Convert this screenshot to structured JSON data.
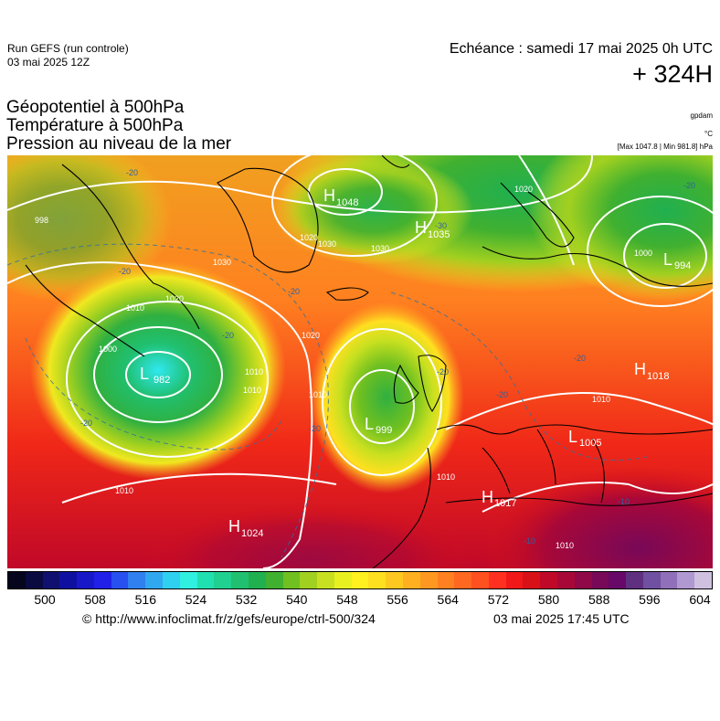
{
  "header": {
    "run_name": "Run GEFS (run controle)",
    "run_date": "03 mai 2025 12Z",
    "valid_time": "Echéance : samedi 17 mai 2025 0h UTC",
    "lead_time": "+ 324H"
  },
  "titles": {
    "line1": "Géopotentiel à 500hPa",
    "line2": "Température à 500hPa",
    "line3": "Pression au niveau de la mer"
  },
  "units": {
    "geopotential": "gpdam",
    "temperature": "°C",
    "pressure": "[Max 1047.8 | Min 981.8] hPa"
  },
  "centers": [
    {
      "kind": "H",
      "value": "1048"
    },
    {
      "kind": "H",
      "value": "1035"
    },
    {
      "kind": "L",
      "value": "994"
    },
    {
      "kind": "L",
      "value": "982"
    },
    {
      "kind": "L",
      "value": "999"
    },
    {
      "kind": "H",
      "value": "1018"
    },
    {
      "kind": "L",
      "value": "1005"
    },
    {
      "kind": "H",
      "value": "1017"
    },
    {
      "kind": "H",
      "value": "1024"
    }
  ],
  "isobar_labels": [
    "998",
    "1020",
    "1030",
    "1030",
    "1020",
    "1020",
    "1010",
    "1000",
    "1010",
    "1010",
    "1010",
    "1010",
    "1010",
    "1010",
    "1020",
    "1030",
    "1010",
    "1000"
  ],
  "isotherm_labels": [
    "-20",
    "-20",
    "-20",
    "-20",
    "-20",
    "-20",
    "-20",
    "-20",
    "-30",
    "-20",
    "-10",
    "-10",
    "-20"
  ],
  "colorbar": {
    "ticks": [
      "500",
      "508",
      "516",
      "524",
      "532",
      "540",
      "548",
      "556",
      "564",
      "572",
      "580",
      "588",
      "596",
      "604"
    ],
    "colors": [
      "#05051e",
      "#0a0a40",
      "#101070",
      "#1010a0",
      "#1818c8",
      "#2020e8",
      "#2850f0",
      "#3080f0",
      "#30a8f0",
      "#30d0f0",
      "#30f0e0",
      "#20e0b0",
      "#20d090",
      "#20c070",
      "#20b050",
      "#40b030",
      "#70c020",
      "#a0d020",
      "#c8e020",
      "#e8f020",
      "#fff020",
      "#ffe020",
      "#ffc820",
      "#ffb020",
      "#ff9820",
      "#ff8020",
      "#ff6820",
      "#ff5020",
      "#ff3020",
      "#f01818",
      "#d81018",
      "#c00828",
      "#a80838",
      "#900848",
      "#780858",
      "#680868",
      "#603080",
      "#7050a0",
      "#9070b8",
      "#b098d0",
      "#d0c0e0"
    ]
  },
  "credits": {
    "url": "© http://www.infoclimat.fr/z/gefs/europe/ctrl-500/324",
    "date": "03 mai 2025 17:45 UTC"
  }
}
